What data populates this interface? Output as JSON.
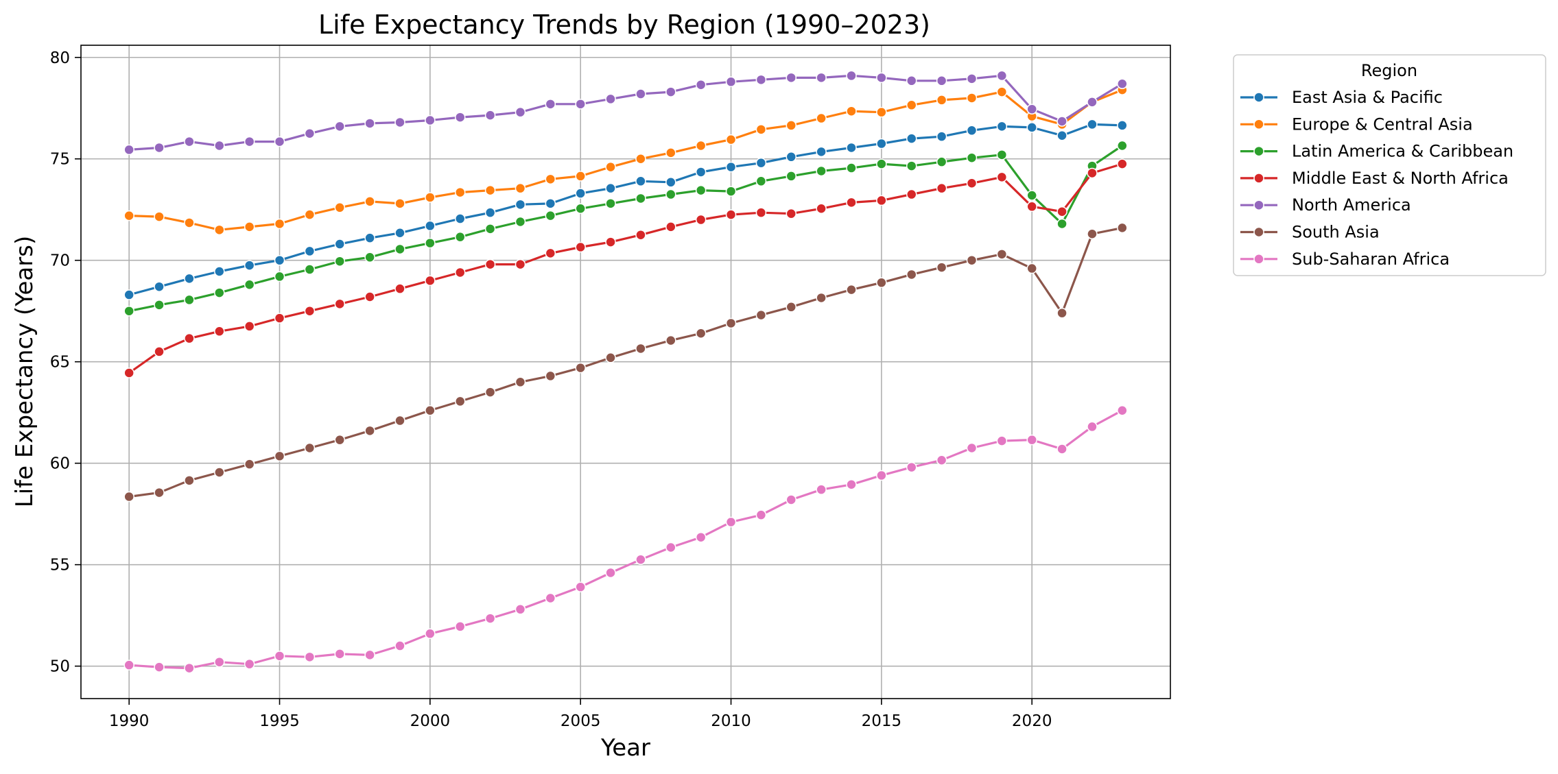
{
  "chart_data": {
    "type": "line",
    "title": "Life Expectancy Trends by Region (1990–2023)",
    "xlabel": "Year",
    "ylabel": "Life Expectancy (Years)",
    "xlim": [
      1988.4,
      2024.6
    ],
    "ylim": [
      48.4,
      80.6
    ],
    "xticks": [
      1990,
      1995,
      2000,
      2005,
      2010,
      2015,
      2020
    ],
    "yticks": [
      50,
      55,
      60,
      65,
      70,
      75,
      80
    ],
    "grid": true,
    "legend": {
      "title": "Region",
      "placement": "outside-top-right"
    },
    "x": [
      1990,
      1991,
      1992,
      1993,
      1994,
      1995,
      1996,
      1997,
      1998,
      1999,
      2000,
      2001,
      2002,
      2003,
      2004,
      2005,
      2006,
      2007,
      2008,
      2009,
      2010,
      2011,
      2012,
      2013,
      2014,
      2015,
      2016,
      2017,
      2018,
      2019,
      2020,
      2021,
      2022,
      2023
    ],
    "series": [
      {
        "name": "East Asia & Pacific",
        "color": "#1f77b4",
        "values": [
          68.3,
          68.7,
          69.1,
          69.45,
          69.75,
          70.0,
          70.45,
          70.8,
          71.1,
          71.35,
          71.7,
          72.05,
          72.35,
          72.75,
          72.8,
          73.3,
          73.55,
          73.9,
          73.85,
          74.35,
          74.6,
          74.8,
          75.1,
          75.35,
          75.55,
          75.75,
          76.0,
          76.1,
          76.4,
          76.6,
          76.55,
          76.15,
          76.7,
          76.65
        ]
      },
      {
        "name": "Europe & Central Asia",
        "color": "#ff7f0e",
        "values": [
          72.2,
          72.15,
          71.85,
          71.5,
          71.65,
          71.8,
          72.25,
          72.6,
          72.9,
          72.8,
          73.1,
          73.35,
          73.45,
          73.55,
          74.0,
          74.15,
          74.6,
          75.0,
          75.3,
          75.65,
          75.95,
          76.45,
          76.65,
          77.0,
          77.35,
          77.3,
          77.65,
          77.9,
          78.0,
          78.3,
          77.1,
          76.7,
          77.8,
          78.4
        ]
      },
      {
        "name": "Latin America & Caribbean",
        "color": "#2ca02c",
        "values": [
          67.5,
          67.8,
          68.05,
          68.4,
          68.8,
          69.2,
          69.55,
          69.95,
          70.15,
          70.55,
          70.85,
          71.15,
          71.55,
          71.9,
          72.2,
          72.55,
          72.8,
          73.05,
          73.25,
          73.45,
          73.4,
          73.9,
          74.15,
          74.4,
          74.55,
          74.75,
          74.65,
          74.85,
          75.05,
          75.2,
          73.2,
          71.8,
          74.65,
          75.65
        ]
      },
      {
        "name": "Middle East & North Africa",
        "color": "#d62728",
        "values": [
          64.45,
          65.5,
          66.15,
          66.5,
          66.75,
          67.15,
          67.5,
          67.85,
          68.2,
          68.6,
          69.0,
          69.4,
          69.8,
          69.8,
          70.35,
          70.65,
          70.9,
          71.25,
          71.65,
          72.0,
          72.25,
          72.35,
          72.3,
          72.55,
          72.85,
          72.95,
          73.25,
          73.55,
          73.8,
          74.1,
          72.65,
          72.4,
          74.3,
          74.75
        ]
      },
      {
        "name": "North America",
        "color": "#9467bd",
        "values": [
          75.45,
          75.55,
          75.85,
          75.65,
          75.85,
          75.85,
          76.25,
          76.6,
          76.75,
          76.8,
          76.9,
          77.05,
          77.15,
          77.3,
          77.7,
          77.7,
          77.95,
          78.2,
          78.3,
          78.65,
          78.8,
          78.9,
          79.0,
          79.0,
          79.1,
          79.0,
          78.85,
          78.85,
          78.95,
          79.1,
          77.45,
          76.85,
          77.8,
          78.7
        ]
      },
      {
        "name": "South Asia",
        "color": "#8c564b",
        "values": [
          58.35,
          58.55,
          59.15,
          59.55,
          59.95,
          60.35,
          60.75,
          61.15,
          61.6,
          62.1,
          62.6,
          63.05,
          63.5,
          64.0,
          64.3,
          64.7,
          65.2,
          65.65,
          66.05,
          66.4,
          66.9,
          67.3,
          67.7,
          68.15,
          68.55,
          68.9,
          69.3,
          69.65,
          70.0,
          70.3,
          69.6,
          67.4,
          71.3,
          71.6
        ]
      },
      {
        "name": "Sub-Saharan Africa",
        "color": "#e377c2",
        "values": [
          50.05,
          49.95,
          49.9,
          50.2,
          50.1,
          50.5,
          50.45,
          50.6,
          50.55,
          51.0,
          51.6,
          51.95,
          52.35,
          52.8,
          53.35,
          53.9,
          54.6,
          55.25,
          55.85,
          56.35,
          57.1,
          57.45,
          58.2,
          58.7,
          58.95,
          59.4,
          59.8,
          60.15,
          60.75,
          61.1,
          61.15,
          60.7,
          61.8,
          62.6
        ]
      }
    ]
  }
}
